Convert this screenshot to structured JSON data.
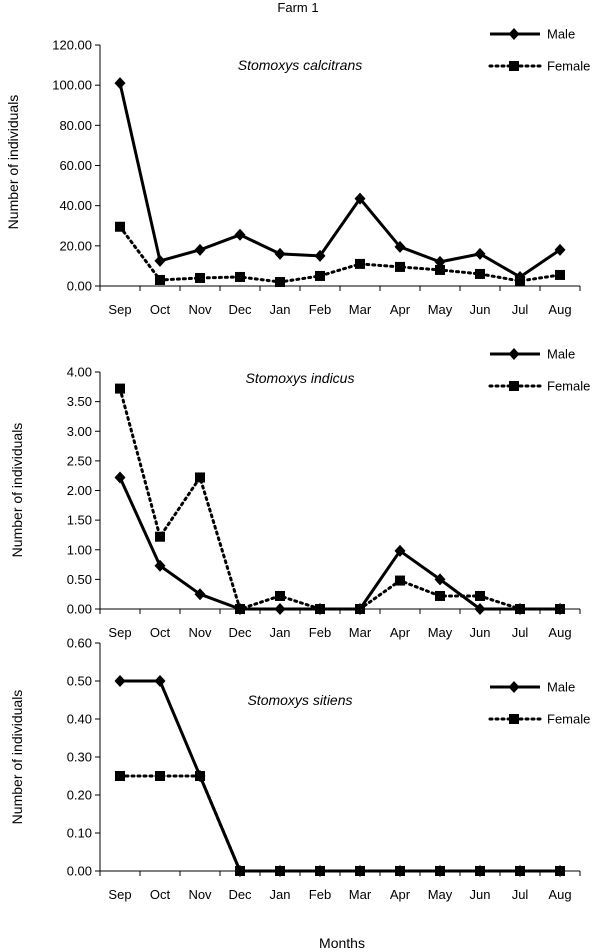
{
  "figure": {
    "title": "Farm 1",
    "xlabel": "Months"
  },
  "chart_data": [
    {
      "type": "line",
      "title": "Stomoxys calcitrans",
      "ylabel": "Number of individuals",
      "ylim": [
        0,
        120
      ],
      "yticks": [
        "0.00",
        "20.00",
        "40.00",
        "60.00",
        "80.00",
        "100.00",
        "120.00"
      ],
      "categories": [
        "Sep",
        "Oct",
        "Nov",
        "Dec",
        "Jan",
        "Feb",
        "Mar",
        "Apr",
        "May",
        "Jun",
        "Jul",
        "Aug"
      ],
      "legend_position": "top-right",
      "series": [
        {
          "name": "Male",
          "style": "solid",
          "marker": "diamond",
          "values": [
            101,
            12.5,
            18,
            25.5,
            16,
            15,
            43.5,
            19.5,
            12,
            16,
            4.5,
            18
          ]
        },
        {
          "name": "Female",
          "style": "dotted",
          "marker": "square",
          "values": [
            29.5,
            3,
            4,
            4.5,
            2,
            5,
            11,
            9.5,
            8,
            6,
            2.5,
            5.5
          ]
        }
      ]
    },
    {
      "type": "line",
      "title": "Stomoxys indicus",
      "ylabel": "Number of individuals",
      "ylim": [
        0,
        4
      ],
      "yticks": [
        "0.00",
        "0.50",
        "1.00",
        "1.50",
        "2.00",
        "2.50",
        "3.00",
        "3.50",
        "4.00"
      ],
      "categories": [
        "Sep",
        "Oct",
        "Nov",
        "Dec",
        "Jan",
        "Feb",
        "Mar",
        "Apr",
        "May",
        "Jun",
        "Jul",
        "Aug"
      ],
      "legend_position": "top-right",
      "series": [
        {
          "name": "Male",
          "style": "solid",
          "marker": "diamond",
          "values": [
            2.22,
            0.73,
            0.25,
            0,
            0,
            0,
            0,
            0.98,
            0.5,
            0,
            0,
            0
          ]
        },
        {
          "name": "Female",
          "style": "dotted",
          "marker": "square",
          "values": [
            3.72,
            1.22,
            2.22,
            0,
            0.22,
            0,
            0,
            0.48,
            0.22,
            0.22,
            0,
            0
          ]
        }
      ]
    },
    {
      "type": "line",
      "title": "Stomoxys sitiens",
      "ylabel": "Number of individuals",
      "ylim": [
        0,
        0.6
      ],
      "yticks": [
        "0.00",
        "0.10",
        "0.20",
        "0.30",
        "0.40",
        "0.50",
        "0.60"
      ],
      "categories": [
        "Sep",
        "Oct",
        "Nov",
        "Dec",
        "Jan",
        "Feb",
        "Mar",
        "Apr",
        "May",
        "Jun",
        "Jul",
        "Aug"
      ],
      "legend_position": "top-right",
      "series": [
        {
          "name": "Male",
          "style": "solid",
          "marker": "diamond",
          "values": [
            0.5,
            0.5,
            0.25,
            0,
            0,
            0,
            0,
            0,
            0,
            0,
            0,
            0
          ]
        },
        {
          "name": "Female",
          "style": "dotted",
          "marker": "square",
          "values": [
            0.25,
            0.25,
            0.25,
            0,
            0,
            0,
            0,
            0,
            0,
            0,
            0,
            0
          ]
        }
      ]
    }
  ]
}
